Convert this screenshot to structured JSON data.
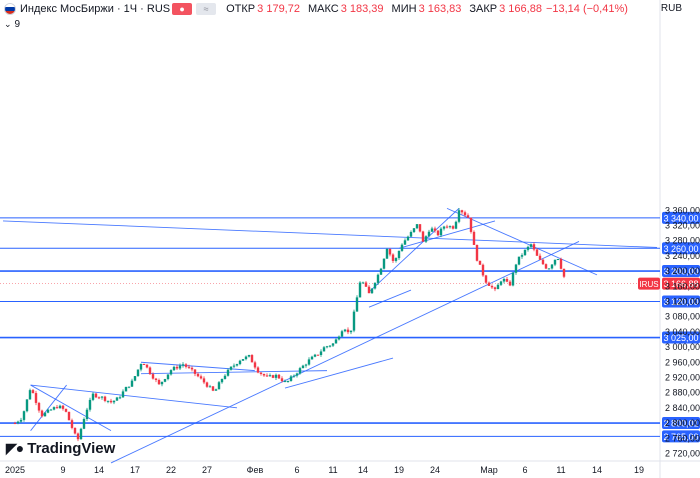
{
  "header": {
    "instrument": "Индекс МосБиржи · 1Ч · RUS",
    "open_label": "ОТКР",
    "open_value": "3 179,72",
    "high_label": "МАКС",
    "high_value": "3 183,39",
    "low_label": "МИН",
    "low_value": "3 163,83",
    "close_label": "ЗАКР",
    "close_value": "3 166,88",
    "change": "−13,14 (−0,41%)",
    "indicator_count": "9",
    "currency": "RUB"
  },
  "branding": {
    "logo_text": "TradingView"
  },
  "colors": {
    "up": "#089981",
    "down": "#f23645",
    "lines": "#2962ff",
    "axis_text": "#131722",
    "badge": "#2962ff",
    "price_badge": "#f23645"
  },
  "chart_data": {
    "type": "candlestick",
    "title": "Индекс МосБиржи · 1Ч · RUS",
    "ylim": [
      2690,
      3385
    ],
    "y_ticks": [
      "3 360,00",
      "3 320,00",
      "3 280,00",
      "3 240,00",
      "3 200,00",
      "3 160,00",
      "3 120,00",
      "3 080,00",
      "3 040,00",
      "3 000,00",
      "2 960,00",
      "2 920,00",
      "2 880,00",
      "2 840,00",
      "2 800,00",
      "2 760,00",
      "2 720,00"
    ],
    "y_tick_values": [
      3360,
      3320,
      3280,
      3240,
      3200,
      3160,
      3120,
      3080,
      3040,
      3000,
      2960,
      2920,
      2880,
      2840,
      2800,
      2760,
      2720
    ],
    "x_ticks": [
      {
        "label": "2025",
        "t": 0
      },
      {
        "label": "9",
        "t": 4
      },
      {
        "label": "14",
        "t": 7
      },
      {
        "label": "17",
        "t": 10
      },
      {
        "label": "22",
        "t": 13
      },
      {
        "label": "27",
        "t": 16
      },
      {
        "label": "Фев",
        "t": 20
      },
      {
        "label": "6",
        "t": 23.5
      },
      {
        "label": "11",
        "t": 26.5
      },
      {
        "label": "14",
        "t": 29
      },
      {
        "label": "19",
        "t": 32
      },
      {
        "label": "24",
        "t": 35
      },
      {
        "label": "Мар",
        "t": 39.5
      },
      {
        "label": "6",
        "t": 42.5
      },
      {
        "label": "11",
        "t": 45.5
      },
      {
        "label": "14",
        "t": 48.5
      },
      {
        "label": "19",
        "t": 52
      }
    ],
    "x_max": 53.5,
    "levels": [
      {
        "value": 3340.0,
        "label": "3 340,00"
      },
      {
        "value": 3260.0,
        "label": "3 260,00"
      },
      {
        "value": 3200.0,
        "label": "3 200,00"
      },
      {
        "value": 3120.0,
        "label": "3 120,00"
      },
      {
        "value": 3025.0,
        "label": "3 025,00"
      },
      {
        "value": 2800.01,
        "label": "2 800,01"
      },
      {
        "value": 2765.0,
        "label": "2 765,00"
      }
    ],
    "current_price": {
      "label": "IRUS",
      "value": 3166.88,
      "text": "3 166,88"
    },
    "trendlines": [
      {
        "t1": -1,
        "p1": 3332,
        "t2": 53.5,
        "p2": 3262
      },
      {
        "t1": 8,
        "p1": 2695,
        "t2": 47,
        "p2": 3278
      },
      {
        "t1": 22.5,
        "p1": 2892,
        "t2": 31.5,
        "p2": 2971
      },
      {
        "t1": 29.5,
        "p1": 3145,
        "t2": 37,
        "p2": 3365
      },
      {
        "t1": 32,
        "p1": 3260,
        "t2": 40,
        "p2": 3332
      },
      {
        "t1": 36,
        "p1": 3365,
        "t2": 48.5,
        "p2": 3190
      },
      {
        "t1": 10.5,
        "p1": 2930,
        "t2": 26,
        "p2": 2938
      },
      {
        "t1": 1.3,
        "p1": 2780,
        "t2": 4.3,
        "p2": 2900
      },
      {
        "t1": 1.3,
        "p1": 2900,
        "t2": 8,
        "p2": 2780
      },
      {
        "t1": 1.3,
        "p1": 2900,
        "t2": 18.5,
        "p2": 2840
      },
      {
        "t1": 10.5,
        "p1": 2960,
        "t2": 20,
        "p2": 2938
      },
      {
        "t1": 29.5,
        "p1": 3105,
        "t2": 33,
        "p2": 3150
      }
    ],
    "anchors": [
      [
        0,
        2800
      ],
      [
        0.6,
        2815
      ],
      [
        1.3,
        2895
      ],
      [
        2.2,
        2820
      ],
      [
        3,
        2835
      ],
      [
        3.6,
        2845
      ],
      [
        4.2,
        2832
      ],
      [
        5.2,
        2752
      ],
      [
        5.9,
        2830
      ],
      [
        6.5,
        2875
      ],
      [
        7.2,
        2868
      ],
      [
        8,
        2855
      ],
      [
        8.6,
        2865
      ],
      [
        9.2,
        2890
      ],
      [
        9.8,
        2910
      ],
      [
        10.6,
        2965
      ],
      [
        11.2,
        2935
      ],
      [
        12,
        2900
      ],
      [
        13,
        2940
      ],
      [
        14,
        2955
      ],
      [
        15,
        2930
      ],
      [
        16,
        2900
      ],
      [
        16.6,
        2880
      ],
      [
        17.3,
        2920
      ],
      [
        18,
        2945
      ],
      [
        18.8,
        2968
      ],
      [
        19.5,
        2975
      ],
      [
        20.3,
        2935
      ],
      [
        21,
        2920
      ],
      [
        21.8,
        2925
      ],
      [
        22.6,
        2905
      ],
      [
        23.3,
        2928
      ],
      [
        24,
        2950
      ],
      [
        24.6,
        2968
      ],
      [
        25.2,
        2980
      ],
      [
        25.8,
        3000
      ],
      [
        26.6,
        3010
      ],
      [
        27.4,
        3055
      ],
      [
        27.9,
        3030
      ],
      [
        28.8,
        3180
      ],
      [
        29.5,
        3140
      ],
      [
        30.4,
        3200
      ],
      [
        31,
        3262
      ],
      [
        31.6,
        3220
      ],
      [
        32.2,
        3270
      ],
      [
        33,
        3300
      ],
      [
        33.6,
        3325
      ],
      [
        34,
        3275
      ],
      [
        34.6,
        3315
      ],
      [
        35.2,
        3295
      ],
      [
        35.8,
        3320
      ],
      [
        36.6,
        3315
      ],
      [
        37,
        3365
      ],
      [
        37.8,
        3340
      ],
      [
        38.4,
        3240
      ],
      [
        39.2,
        3175
      ],
      [
        40,
        3148
      ],
      [
        40.6,
        3182
      ],
      [
        41.2,
        3160
      ],
      [
        41.8,
        3225
      ],
      [
        42.4,
        3250
      ],
      [
        43,
        3270
      ],
      [
        43.6,
        3232
      ],
      [
        44.4,
        3205
      ],
      [
        45.2,
        3240
      ],
      [
        45.8,
        3180
      ]
    ]
  }
}
